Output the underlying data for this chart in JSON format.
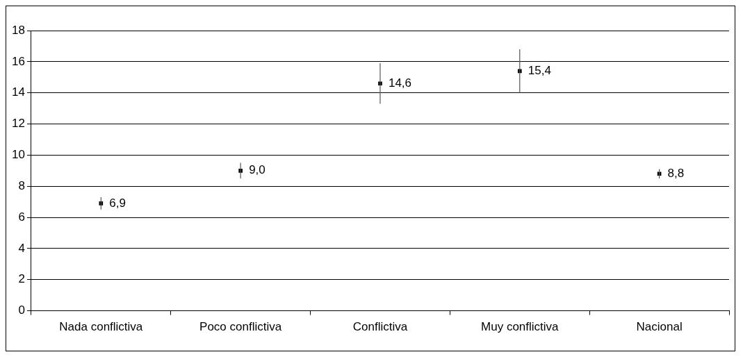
{
  "chart_data": {
    "type": "scatter",
    "categories": [
      "Nada conflictiva",
      "Poco conflictiva",
      "Conflictiva",
      "Muy conflictiva",
      "Nacional"
    ],
    "values": [
      6.9,
      9.0,
      14.6,
      15.4,
      8.8
    ],
    "errors": [
      [
        6.5,
        7.3
      ],
      [
        8.5,
        9.5
      ],
      [
        13.3,
        15.9
      ],
      [
        14.0,
        16.8
      ],
      [
        8.5,
        9.1
      ]
    ],
    "value_labels": [
      "6,9",
      "9,0",
      "14,6",
      "15,4",
      "8,8"
    ],
    "color": "#000000",
    "marker": "square",
    "ylim": [
      0,
      18
    ],
    "yticks": [
      0,
      2,
      4,
      6,
      8,
      10,
      12,
      14,
      16,
      18
    ],
    "grid": "y",
    "legend": false
  }
}
